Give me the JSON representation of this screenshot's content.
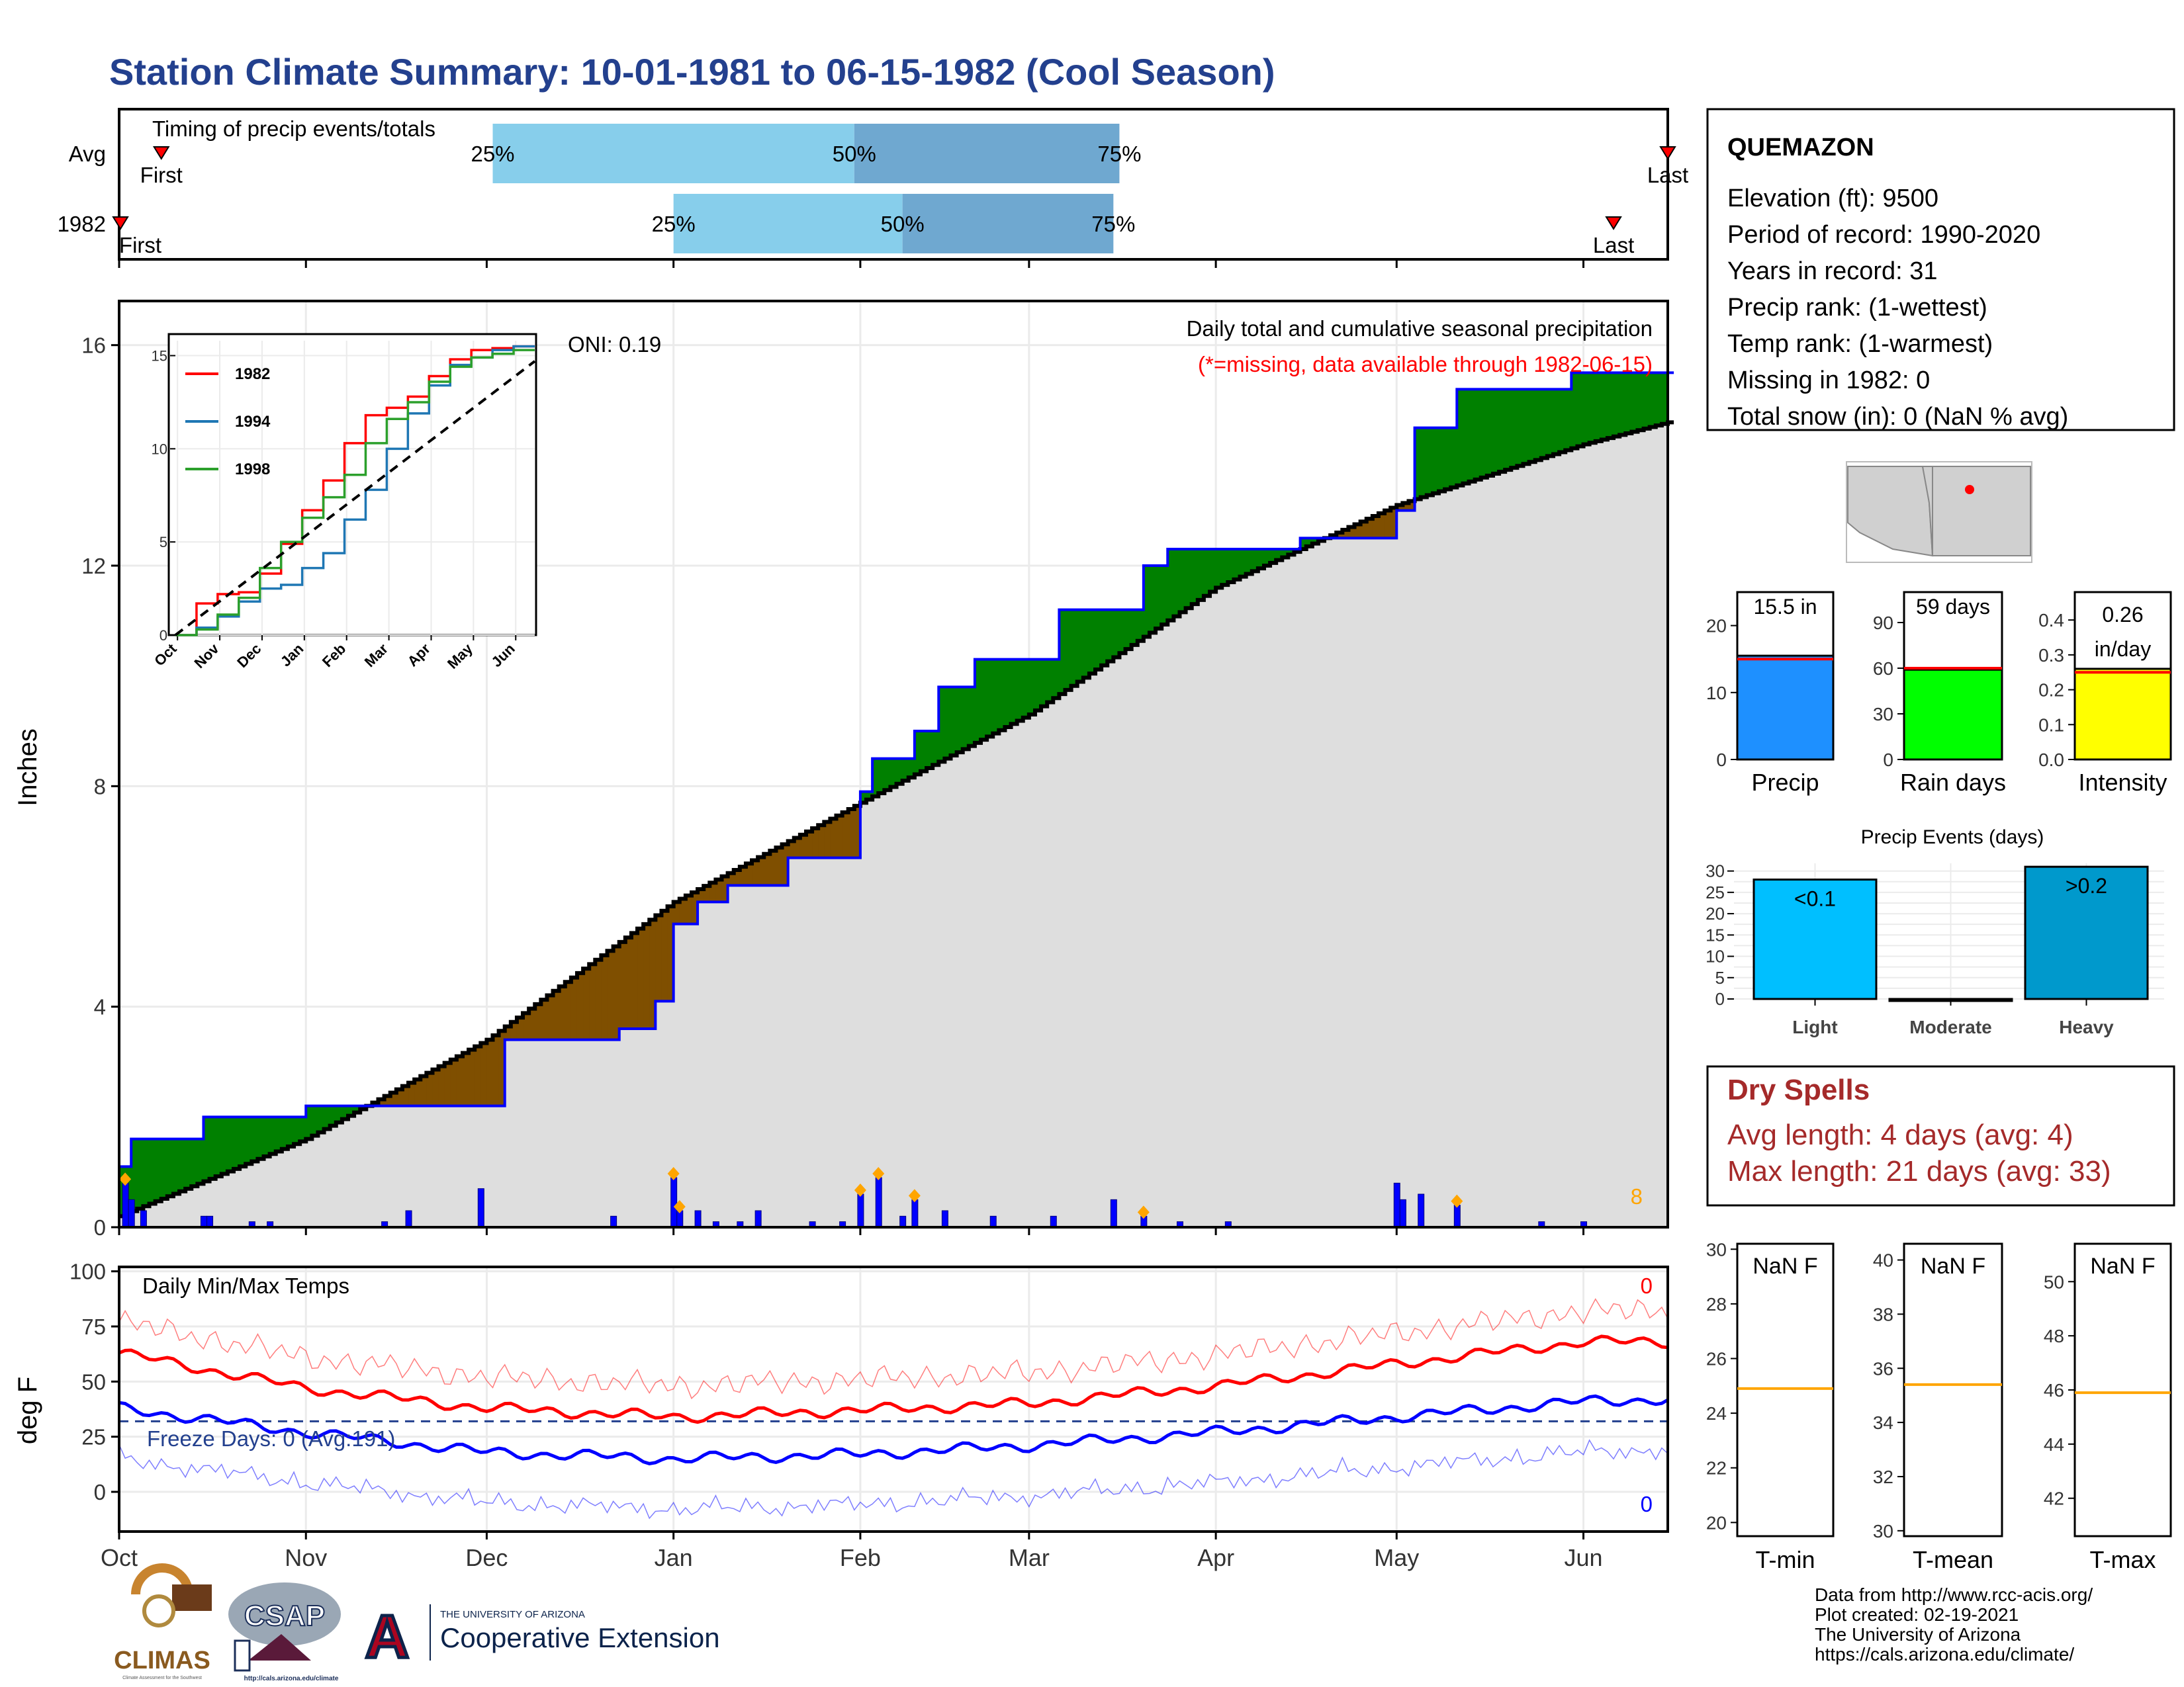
{
  "title": "Station Climate Summary: 10-01-1981 to 06-15-1982 (Cool Season)",
  "colors": {
    "title": "#23408e",
    "q1": "#87ceeb",
    "q2": "#6fa8d0",
    "green": "#008000",
    "brown": "#7f4f00",
    "fill": "#dedede",
    "blue": "#0000ff",
    "red": "#ff0000",
    "orange": "#ffa500",
    "darkred": "#a52a2a"
  },
  "months": [
    "Oct",
    "Nov",
    "Dec",
    "Jan",
    "Feb",
    "Mar",
    "Apr",
    "May",
    "Jun"
  ],
  "timing": {
    "label": "Timing of precip events/totals",
    "rows": [
      {
        "name": "Avg",
        "q25": "25%",
        "q50": "50%",
        "q75": "75%",
        "first": "First",
        "last": "Last",
        "first_date": "1981-10-08",
        "q25_date": "1981-12-02",
        "q50_date": "1982-01-31",
        "q75_date": "1982-03-16",
        "last_date": "1982-06-15"
      },
      {
        "name": "1982",
        "q25": "25%",
        "q50": "50%",
        "q75": "75%",
        "first": "First",
        "last": "Last",
        "first_date": "1981-10-01",
        "q25_date": "1982-01-01",
        "q50_date": "1982-02-08",
        "q75_date": "1982-03-15",
        "last_date": "1982-06-06"
      }
    ]
  },
  "precip_panel": {
    "ylabel": "Inches",
    "yticks": [
      0,
      4,
      8,
      12,
      16
    ],
    "oni": "ONI: 0.19",
    "caption": "Daily total and cumulative seasonal precipitation",
    "missing_note": "(*=missing, data available through 1982-06-15)",
    "count_label": "8"
  },
  "inset": {
    "yticks": [
      0,
      5,
      10,
      15
    ],
    "months": [
      "Oct",
      "Nov",
      "Dec",
      "Jan",
      "Feb",
      "Mar",
      "Apr",
      "May",
      "Jun"
    ],
    "legend": [
      {
        "name": "1982",
        "color": "#ff0000"
      },
      {
        "name": "1994",
        "color": "#1f77b4"
      },
      {
        "name": "1998",
        "color": "#2ca02c"
      }
    ]
  },
  "temp_panel": {
    "ylabel": "deg F",
    "title": "Daily Min/Max Temps",
    "freeze_label": "Freeze Days: 0 (Avg:191)",
    "max_count": "0",
    "min_count": "0",
    "yticks": [
      0,
      25,
      50,
      75,
      100
    ]
  },
  "station": {
    "name": "QUEMAZON",
    "lines": [
      "Elevation (ft): 9500",
      "Period of record: 1990-2020",
      "Years in record: 31",
      "Precip rank:  (1-wettest)",
      "Temp rank:  (1-warmest)",
      "Missing in 1982: 0",
      "Total snow (in): 0 (NaN % avg)"
    ]
  },
  "summary_bars": [
    {
      "label": "Precip",
      "value_text": "15.5 in",
      "value": 15.5,
      "avg": 15.0,
      "ymax": 25,
      "ticks": [
        0,
        10,
        20
      ],
      "color": "#1e90ff"
    },
    {
      "label": "Rain days",
      "value_text": "59 days",
      "value": 59,
      "avg": 60,
      "ymax": 110,
      "ticks": [
        0,
        30,
        60,
        90
      ],
      "color": "#00ff00"
    },
    {
      "label": "Intensity",
      "value_text": "0.26 in/day",
      "value": 0.26,
      "avg": 0.25,
      "ymax": 0.48,
      "ticks": [
        "0.0",
        "0.1",
        "0.2",
        "0.3",
        "0.4"
      ],
      "color": "#ffff00"
    }
  ],
  "events": {
    "title": "Precip Events (days)",
    "bars": [
      {
        "label": "Light",
        "text": "<0.1",
        "value": 28,
        "color": "#00bfff"
      },
      {
        "label": "Moderate",
        "text": "",
        "value": 0,
        "color": "#1e90ff"
      },
      {
        "label": "Heavy",
        "text": ">0.2",
        "value": 31,
        "color": "#0099cc"
      }
    ],
    "ticks": [
      0,
      5,
      10,
      15,
      20,
      25,
      30
    ]
  },
  "dry_spells": {
    "title": "Dry Spells",
    "avg": "Avg length: 4 days (avg: 4)",
    "max": "Max length: 21 days (avg: 33)"
  },
  "temp_bars": [
    {
      "label": "T-min",
      "value": "NaN F",
      "avg": 24.9,
      "ymin": 19.5,
      "ymax": 30.2,
      "ticks": [
        20,
        22,
        24,
        26,
        28,
        30
      ]
    },
    {
      "label": "T-mean",
      "value": "NaN F",
      "avg": 35.4,
      "ymin": 29.8,
      "ymax": 40.6,
      "ticks": [
        30,
        32,
        34,
        36,
        38,
        40
      ]
    },
    {
      "label": "T-max",
      "value": "NaN F",
      "avg": 45.9,
      "ymin": 40.6,
      "ymax": 51.4,
      "ticks": [
        42,
        44,
        46,
        48,
        50
      ]
    }
  ],
  "footer": {
    "lines": [
      "Data from http://www.rcc-acis.org/",
      "Plot created: 02-19-2021",
      "The University of Arizona",
      "https://cals.arizona.edu/climate/"
    ]
  },
  "logos": {
    "climas": "CLIMAS",
    "climas_sub": "Climate Assessment for the Southwest",
    "csap": "CSAP",
    "csap_url": "http://cals.arizona.edu/climate",
    "ua_small": "THE UNIVERSITY OF ARIZONA",
    "ua_big": "Cooperative Extension"
  },
  "chart_data": [
    {
      "type": "area",
      "title": "Daily total and cumulative seasonal precipitation",
      "ylabel": "Inches",
      "ylim": [
        0,
        16.8
      ],
      "x_range": [
        "1981-10-01",
        "1982-06-15"
      ],
      "series": [
        {
          "name": "cumulative precip 1982",
          "x": [
            "1981-10-01",
            "1981-10-03",
            "1981-10-15",
            "1981-11-01",
            "1981-11-12",
            "1981-12-04",
            "1981-12-23",
            "1981-12-29",
            "1982-01-01",
            "1982-01-05",
            "1982-01-10",
            "1982-01-20",
            "1982-02-01",
            "1982-02-03",
            "1982-02-10",
            "1982-02-14",
            "1982-02-20",
            "1982-03-06",
            "1982-03-20",
            "1982-03-24",
            "1982-04-15",
            "1982-05-01",
            "1982-05-04",
            "1982-05-11",
            "1982-05-30",
            "1982-06-15"
          ],
          "y": [
            1.1,
            1.6,
            2.0,
            2.2,
            2.2,
            3.4,
            3.6,
            4.1,
            5.5,
            5.9,
            6.2,
            6.7,
            7.9,
            8.5,
            9.0,
            9.8,
            10.3,
            11.2,
            12.0,
            12.3,
            12.5,
            13.0,
            14.5,
            15.2,
            15.5,
            15.5
          ]
        },
        {
          "name": "average cumulative precip",
          "x": [
            "1981-10-01",
            "1981-11-01",
            "1981-12-01",
            "1982-01-01",
            "1982-02-01",
            "1982-03-01",
            "1982-04-01",
            "1982-05-01",
            "1982-06-01",
            "1982-06-15"
          ],
          "y": [
            0.2,
            1.6,
            3.4,
            5.9,
            7.7,
            9.3,
            11.6,
            13.1,
            14.2,
            14.6
          ]
        }
      ],
      "daily_bars": [
        {
          "x": "1981-10-02",
          "y": 0.8
        },
        {
          "x": "1981-10-03",
          "y": 0.5
        },
        {
          "x": "1981-10-05",
          "y": 0.3
        },
        {
          "x": "1981-10-15",
          "y": 0.2
        },
        {
          "x": "1981-10-16",
          "y": 0.2
        },
        {
          "x": "1981-10-23",
          "y": 0.1
        },
        {
          "x": "1981-10-26",
          "y": 0.1
        },
        {
          "x": "1981-11-14",
          "y": 0.1
        },
        {
          "x": "1981-11-18",
          "y": 0.3
        },
        {
          "x": "1981-11-30",
          "y": 0.7
        },
        {
          "x": "1981-12-22",
          "y": 0.2
        },
        {
          "x": "1982-01-01",
          "y": 0.9
        },
        {
          "x": "1982-01-02",
          "y": 0.3
        },
        {
          "x": "1982-01-05",
          "y": 0.3
        },
        {
          "x": "1982-01-08",
          "y": 0.1
        },
        {
          "x": "1982-01-12",
          "y": 0.1
        },
        {
          "x": "1982-01-15",
          "y": 0.3
        },
        {
          "x": "1982-01-24",
          "y": 0.1
        },
        {
          "x": "1982-01-29",
          "y": 0.1
        },
        {
          "x": "1982-02-01",
          "y": 0.6
        },
        {
          "x": "1982-02-04",
          "y": 0.9
        },
        {
          "x": "1982-02-08",
          "y": 0.2
        },
        {
          "x": "1982-02-10",
          "y": 0.5
        },
        {
          "x": "1982-02-15",
          "y": 0.3
        },
        {
          "x": "1982-02-23",
          "y": 0.2
        },
        {
          "x": "1982-03-05",
          "y": 0.2
        },
        {
          "x": "1982-03-15",
          "y": 0.5
        },
        {
          "x": "1982-03-20",
          "y": 0.2
        },
        {
          "x": "1982-03-26",
          "y": 0.1
        },
        {
          "x": "1982-04-03",
          "y": 0.1
        },
        {
          "x": "1982-05-01",
          "y": 0.8
        },
        {
          "x": "1982-05-02",
          "y": 0.5
        },
        {
          "x": "1982-05-05",
          "y": 0.6
        },
        {
          "x": "1982-05-11",
          "y": 0.4
        },
        {
          "x": "1982-05-25",
          "y": 0.1
        },
        {
          "x": "1982-06-01",
          "y": 0.1
        }
      ],
      "missing_or_flagged": [
        "1981-10-02",
        "1982-01-01",
        "1982-01-02",
        "1982-02-01",
        "1982-02-04",
        "1982-02-10",
        "1982-03-20",
        "1982-05-11"
      ]
    },
    {
      "type": "line",
      "title": "Daily Min/Max Temps",
      "ylabel": "deg F",
      "ylim": [
        -18,
        102
      ],
      "freeze_line": 32,
      "x_range": [
        "1981-10-01",
        "1982-06-15"
      ],
      "series": [
        {
          "name": "avg max",
          "color": "#ff0000",
          "x": [
            "1981-10-01",
            "1981-11-01",
            "1981-12-01",
            "1982-01-01",
            "1982-02-01",
            "1982-03-01",
            "1982-04-01",
            "1982-05-01",
            "1982-06-01",
            "1982-06-15"
          ],
          "y": [
            63,
            47,
            38,
            34,
            37,
            40,
            48,
            58,
            68,
            68
          ]
        },
        {
          "name": "avg min",
          "color": "#0000ff",
          "x": [
            "1981-10-01",
            "1981-11-01",
            "1981-12-01",
            "1982-01-01",
            "1982-02-01",
            "1982-03-01",
            "1982-04-01",
            "1982-05-01",
            "1982-06-01",
            "1982-06-15"
          ],
          "y": [
            38,
            27,
            18,
            15,
            17,
            21,
            27,
            34,
            41,
            42
          ]
        }
      ]
    },
    {
      "type": "line",
      "title": "",
      "xlabel": "",
      "ylim": [
        0,
        15.5
      ],
      "series": [
        {
          "name": "1982",
          "color": "#ff0000",
          "x": [
            0,
            0.5,
            1,
            1.5,
            2,
            2.5,
            3,
            3.5,
            4,
            4.5,
            5,
            5.5,
            6,
            6.5,
            7,
            7.5,
            8,
            8.5
          ],
          "y": [
            0,
            1.7,
            2.2,
            2.3,
            3.3,
            4.9,
            6.7,
            8.3,
            10.3,
            11.8,
            12.2,
            12.8,
            13.9,
            14.8,
            15.3,
            15.4,
            15.5,
            15.5
          ]
        },
        {
          "name": "1994",
          "color": "#1f77b4",
          "x": [
            0,
            0.5,
            1,
            1.5,
            2,
            2.5,
            3,
            3.5,
            4,
            4.5,
            5,
            5.5,
            6,
            6.5,
            7,
            7.5,
            8,
            8.5
          ],
          "y": [
            0,
            0.4,
            1.0,
            1.8,
            2.5,
            2.7,
            3.6,
            4.4,
            6.2,
            7.8,
            10.0,
            11.9,
            13.4,
            14.5,
            14.9,
            15.3,
            15.5,
            15.5
          ]
        },
        {
          "name": "1998",
          "color": "#2ca02c",
          "x": [
            0,
            0.5,
            1,
            1.5,
            2,
            2.5,
            3,
            3.5,
            4,
            4.5,
            5,
            5.5,
            6,
            6.5,
            7,
            7.5,
            8,
            8.5
          ],
          "y": [
            0,
            0.3,
            1.1,
            2.0,
            3.6,
            5.0,
            6.3,
            7.4,
            8.6,
            10.3,
            11.6,
            12.5,
            13.6,
            14.4,
            14.9,
            15.1,
            15.3,
            15.3
          ]
        },
        {
          "name": "average",
          "color": "#000000",
          "x": [
            0,
            8.5
          ],
          "y": [
            0,
            14.7
          ]
        }
      ]
    }
  ]
}
